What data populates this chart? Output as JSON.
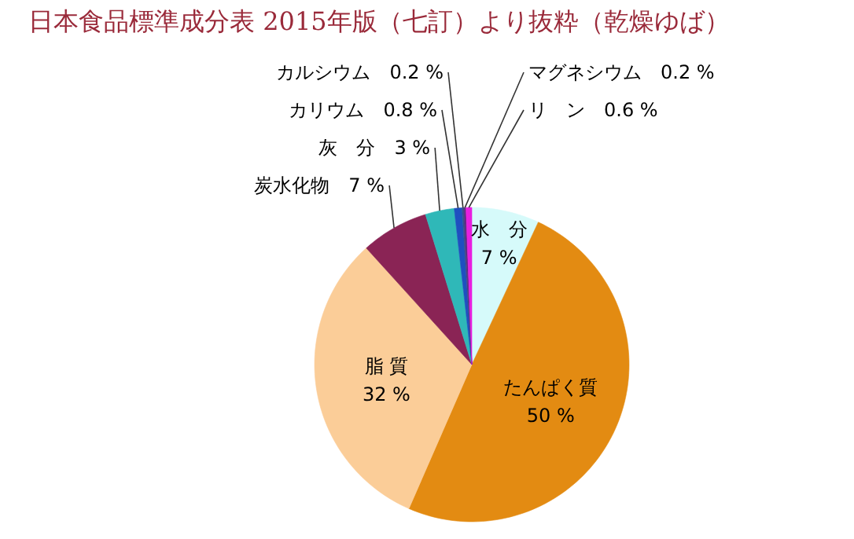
{
  "chart_data": {
    "type": "pie",
    "title": "日本食品標準成分表 2015年版（七訂）より抜粋（乾燥ゆば）",
    "categories": [
      "水　分",
      "たんぱく質",
      "脂 質",
      "炭水化物",
      "灰　分",
      "カリウム",
      "カルシウム",
      "マグネシウム",
      "リ　ン"
    ],
    "values": [
      7,
      50,
      32,
      7,
      3,
      0.8,
      0.2,
      0.2,
      0.6
    ],
    "value_labels": [
      "7 %",
      "50 %",
      "32 %",
      "7 %",
      "3 %",
      "0.8 %",
      "0.2 %",
      "0.2 %",
      "0.6 %"
    ],
    "colors": [
      "#d6fafa",
      "#e38b12",
      "#fbcd98",
      "#8a2455",
      "#2fb8b8",
      "#1f4fc0",
      "#3a4f8a",
      "#5a2a80",
      "#e81ee0"
    ]
  }
}
